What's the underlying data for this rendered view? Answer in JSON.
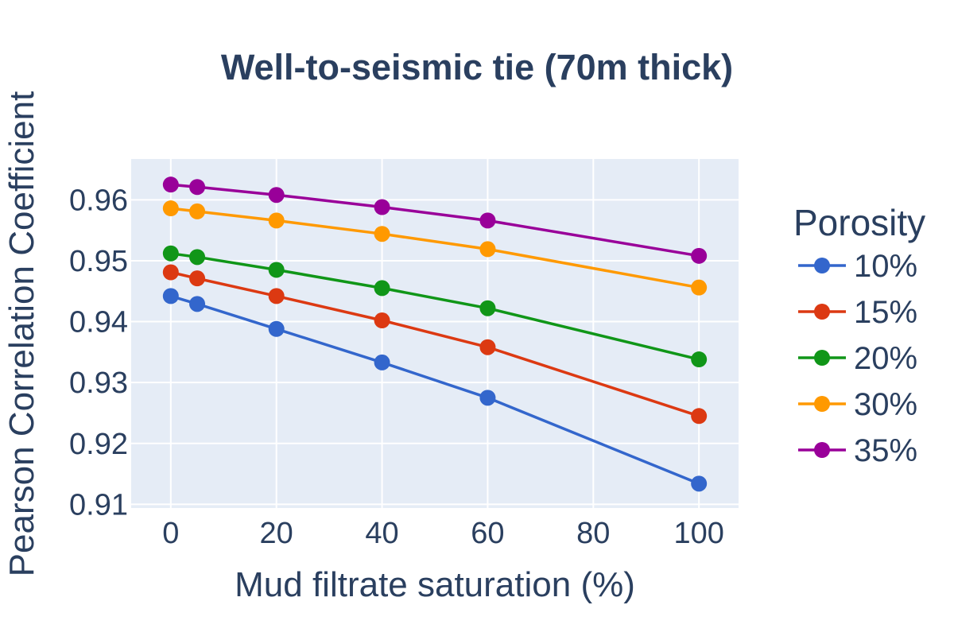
{
  "chart_data": {
    "type": "line",
    "title": "Well-to-seismic tie (70m thick)",
    "xlabel": "Mud filtrate saturation (%)",
    "ylabel": "Pearson Correlation Coefficient",
    "xlim": [
      -7.5,
      107.5
    ],
    "ylim": [
      0.9094,
      0.9667
    ],
    "x_ticks": [
      0,
      20,
      40,
      60,
      80,
      100
    ],
    "x_tick_labels": [
      "0",
      "20",
      "40",
      "60",
      "80",
      "100"
    ],
    "y_ticks": [
      0.91,
      0.92,
      0.93,
      0.94,
      0.95,
      0.96
    ],
    "y_tick_labels": [
      "0.91",
      "0.92",
      "0.93",
      "0.94",
      "0.95",
      "0.96"
    ],
    "grid": true,
    "plot_background": "#e5ecf6",
    "legend": {
      "title": "Porosity",
      "placement": "right"
    },
    "x": [
      0,
      5,
      20,
      40,
      60,
      100
    ],
    "series": [
      {
        "name": "10%",
        "color": "#3366cc",
        "values": [
          0.9442,
          0.9429,
          0.9388,
          0.9333,
          0.9275,
          0.9134
        ]
      },
      {
        "name": "15%",
        "color": "#dc3912",
        "values": [
          0.9481,
          0.9471,
          0.9442,
          0.9402,
          0.9358,
          0.9245
        ]
      },
      {
        "name": "20%",
        "color": "#109618",
        "values": [
          0.9512,
          0.9506,
          0.9485,
          0.9455,
          0.9422,
          0.9338
        ]
      },
      {
        "name": "30%",
        "color": "#ff9900",
        "values": [
          0.9586,
          0.9581,
          0.9566,
          0.9544,
          0.9519,
          0.9456
        ]
      },
      {
        "name": "35%",
        "color": "#990099",
        "values": [
          0.9625,
          0.9621,
          0.9608,
          0.9588,
          0.9566,
          0.9508
        ]
      }
    ]
  }
}
